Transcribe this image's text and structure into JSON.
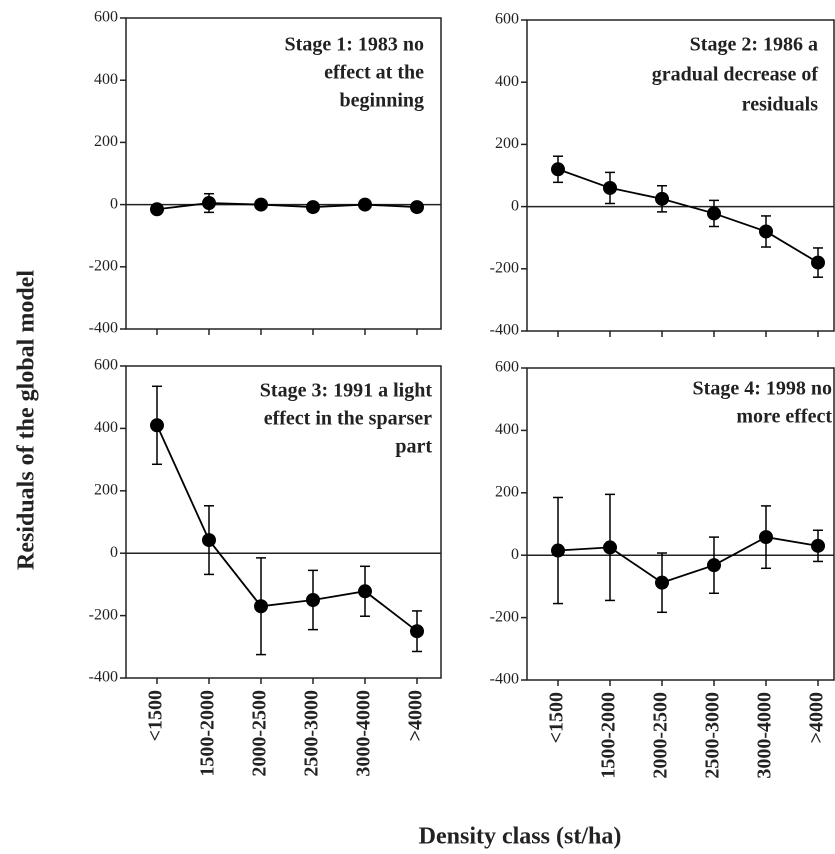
{
  "ylabel": "Residuals of the global model",
  "xlabel": "Density class (st/ha)",
  "categories": [
    "<1500",
    "1500-2000",
    "2000-2500",
    "2500-3000",
    "3000-4000",
    ">4000"
  ],
  "chart_data": [
    {
      "type": "line",
      "title": [
        "Stage 1: 1983 no",
        "effect at the",
        "beginning"
      ],
      "color": "#000000",
      "values": [
        -15,
        5,
        0,
        -8,
        0,
        -8
      ],
      "errors": [
        10,
        30,
        10,
        8,
        5,
        8
      ],
      "ylim": [
        -400,
        600
      ],
      "yticks": [
        -400,
        -200,
        0,
        200,
        400,
        600
      ]
    },
    {
      "type": "line",
      "title": [
        "Stage 2: 1986 a",
        "gradual decrease of",
        "residuals"
      ],
      "color": "#000000",
      "values": [
        120,
        60,
        25,
        -22,
        -80,
        -180
      ],
      "errors": [
        42,
        50,
        42,
        42,
        50,
        47
      ],
      "ylim": [
        -400,
        600
      ],
      "yticks": [
        -400,
        -200,
        0,
        200,
        400,
        600
      ]
    },
    {
      "type": "line",
      "title": [
        "Stage 3: 1991 a light",
        "effect in the sparser",
        "part"
      ],
      "color": "#000000",
      "values": [
        410,
        42,
        -170,
        -150,
        -122,
        -250
      ],
      "errors": [
        125,
        110,
        155,
        95,
        80,
        65
      ],
      "ylim": [
        -400,
        600
      ],
      "yticks": [
        -400,
        -200,
        0,
        200,
        400,
        600
      ]
    },
    {
      "type": "line",
      "title": [
        "Stage 4: 1998 no",
        "more effect"
      ],
      "color": "#000000",
      "values": [
        15,
        25,
        -88,
        -32,
        58,
        30
      ],
      "errors": [
        170,
        170,
        95,
        90,
        100,
        50
      ],
      "ylim": [
        -400,
        600
      ],
      "yticks": [
        -400,
        -200,
        0,
        200,
        400,
        600
      ]
    }
  ]
}
